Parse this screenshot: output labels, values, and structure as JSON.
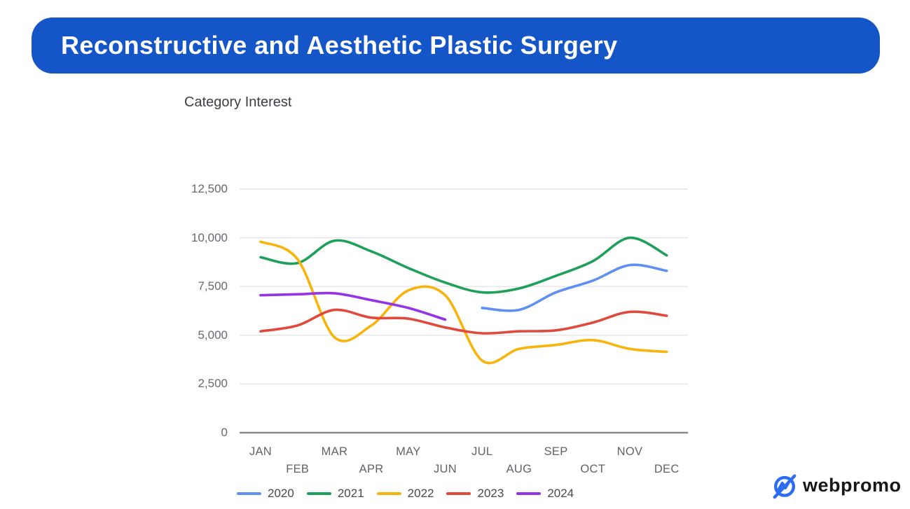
{
  "banner": {
    "title": "Reconstructive and Aesthetic Plastic Surgery",
    "bg_color": "#1456C8",
    "text_color": "#ffffff"
  },
  "chart_data": {
    "type": "line",
    "title": "Category Interest",
    "categories": [
      "JAN",
      "FEB",
      "MAR",
      "APR",
      "MAY",
      "JUN",
      "JUL",
      "AUG",
      "SEP",
      "OCT",
      "NOV",
      "DEC"
    ],
    "series": [
      {
        "name": "2020",
        "color": "#5e8ff2",
        "values": [
          null,
          null,
          null,
          null,
          null,
          null,
          6400,
          6300,
          7200,
          7800,
          8600,
          8300
        ]
      },
      {
        "name": "2021",
        "color": "#1fa05a",
        "values": [
          9000,
          8700,
          9850,
          9300,
          8450,
          7700,
          7200,
          7400,
          8050,
          8800,
          10000,
          9100
        ]
      },
      {
        "name": "2022",
        "color": "#f6b40c",
        "values": [
          9800,
          8900,
          4900,
          5500,
          7300,
          7050,
          3700,
          4300,
          4500,
          4750,
          4300,
          4150
        ]
      },
      {
        "name": "2023",
        "color": "#e04a3c",
        "values": [
          5200,
          5500,
          6300,
          5900,
          5850,
          5400,
          5100,
          5200,
          5250,
          5650,
          6200,
          6000
        ]
      },
      {
        "name": "2024",
        "color": "#9334e6",
        "values": [
          7050,
          7100,
          7150,
          6800,
          6400,
          5800,
          null,
          null,
          null,
          null,
          null,
          null
        ]
      }
    ],
    "xlabel": "",
    "ylabel": "",
    "ylim": [
      0,
      12500
    ],
    "y_ticks": [
      {
        "value": 0,
        "label": "0"
      },
      {
        "value": 2500,
        "label": "2,500"
      },
      {
        "value": 5000,
        "label": "5,000"
      },
      {
        "value": 7500,
        "label": "7,500"
      },
      {
        "value": 10000,
        "label": "10,000"
      },
      {
        "value": 12500,
        "label": "12,500"
      }
    ],
    "grid": true,
    "legend_position": "bottom",
    "curve": "smooth"
  },
  "logo": {
    "text": "webpromo",
    "icon": "webpromo-circle-trend-icon",
    "icon_color": "#2b6cf0",
    "text_color": "#17181c"
  }
}
